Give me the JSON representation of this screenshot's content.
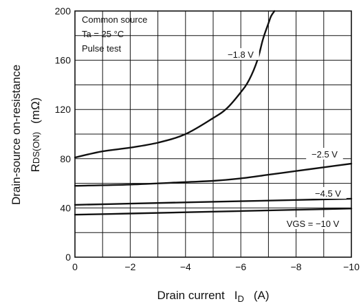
{
  "chart_data": {
    "type": "line",
    "xlabel": "Drain current",
    "xlabel_symbol": "I",
    "xlabel_sub": "D",
    "xlabel_unit": "(A)",
    "ylabel_line1": "Drain-source on-resistance",
    "ylabel_symbol": "R",
    "ylabel_sub": "DS(ON)",
    "ylabel_unit": "(mΩ)",
    "xlim": [
      0,
      -10
    ],
    "ylim": [
      0,
      200
    ],
    "x_ticks": [
      0,
      -2,
      -4,
      -6,
      -8,
      -10
    ],
    "x_tick_labels": [
      "0",
      "−2",
      "−4",
      "−6",
      "−8",
      "−10"
    ],
    "y_ticks": [
      0,
      40,
      80,
      120,
      160,
      200
    ],
    "y_tick_labels": [
      "0",
      "40",
      "80",
      "120",
      "160",
      "200"
    ],
    "x_minor_step": -1,
    "y_minor_step": 20,
    "grid": true,
    "conditions": [
      "Common source",
      "Ta = 25 °C",
      "Pulse test"
    ],
    "series": [
      {
        "name": "−1.8 V",
        "x": [
          0,
          -1,
          -2,
          -3,
          -4,
          -5,
          -5.5,
          -6,
          -6.3,
          -6.6,
          -6.8,
          -7.0,
          -7.1,
          -7.22
        ],
        "y": [
          81,
          86,
          89,
          93,
          100,
          113,
          121,
          134,
          144,
          160,
          177,
          190,
          196,
          200
        ]
      },
      {
        "name": "−2.5 V",
        "x": [
          0,
          -2,
          -4,
          -5,
          -6,
          -7,
          -8,
          -9,
          -10
        ],
        "y": [
          58,
          59,
          61,
          62,
          64,
          67,
          70,
          73,
          76
        ]
      },
      {
        "name": "−4.5 V",
        "x": [
          0,
          -2,
          -4,
          -6,
          -8,
          -10
        ],
        "y": [
          42.5,
          43.5,
          44.5,
          45.5,
          46.5,
          47.5
        ]
      },
      {
        "name": "VGS = −10 V",
        "x": [
          0,
          -2,
          -4,
          -6,
          -8,
          -10
        ],
        "y": [
          34.5,
          35.5,
          36.5,
          37.5,
          38.5,
          39.5
        ]
      }
    ]
  }
}
